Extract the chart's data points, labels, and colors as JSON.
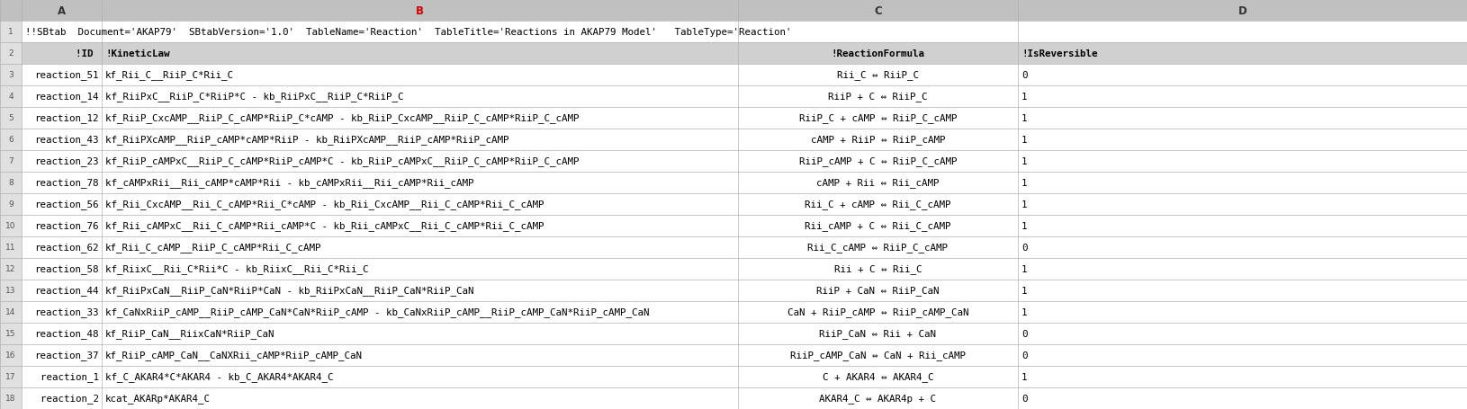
{
  "rows": [
    {
      "row_num": "1",
      "col_a": "!!SBtab  Document='AKAP79'  SBtabVersion='1.0'  TableName='Reaction'  TableTitle='Reactions in AKAP79 Model'   TableType='Reaction'",
      "col_b": "",
      "col_c": "",
      "col_d": "",
      "is_header": false,
      "merged": true
    },
    {
      "row_num": "2",
      "col_a": "!ID ",
      "col_b": "!KineticLaw",
      "col_c": "!ReactionFormula",
      "col_d": "!IsReversible",
      "is_header": true,
      "merged": false
    },
    {
      "row_num": "3",
      "col_a": "reaction_51",
      "col_b": "kf_Rii_C__RiiP_C*Rii_C",
      "col_c": "Rii_C ⇔ RiiP_C",
      "col_d": "0",
      "is_header": false,
      "merged": false
    },
    {
      "row_num": "4",
      "col_a": "reaction_14",
      "col_b": "kf_RiiPxC__RiiP_C*RiiP*C - kb_RiiPxC__RiiP_C*RiiP_C",
      "col_c": "RiiP + C ⇔ RiiP_C",
      "col_d": "1",
      "is_header": false,
      "merged": false
    },
    {
      "row_num": "5",
      "col_a": "reaction_12",
      "col_b": "kf_RiiP_CxcAMP__RiiP_C_cAMP*RiiP_C*cAMP - kb_RiiP_CxcAMP__RiiP_C_cAMP*RiiP_C_cAMP",
      "col_c": "RiiP_C + cAMP ⇔ RiiP_C_cAMP",
      "col_d": "1",
      "is_header": false,
      "merged": false
    },
    {
      "row_num": "6",
      "col_a": "reaction_43",
      "col_b": "kf_RiiPXcAMP__RiiP_cAMP*cAMP*RiiP - kb_RiiPXcAMP__RiiP_cAMP*RiiP_cAMP",
      "col_c": "cAMP + RiiP ⇔ RiiP_cAMP",
      "col_d": "1",
      "is_header": false,
      "merged": false
    },
    {
      "row_num": "7",
      "col_a": "reaction_23",
      "col_b": "kf_RiiP_cAMPxC__RiiP_C_cAMP*RiiP_cAMP*C - kb_RiiP_cAMPxC__RiiP_C_cAMP*RiiP_C_cAMP",
      "col_c": "RiiP_cAMP + C ⇔ RiiP_C_cAMP",
      "col_d": "1",
      "is_header": false,
      "merged": false
    },
    {
      "row_num": "8",
      "col_a": "reaction_78",
      "col_b": "kf_cAMPxRii__Rii_cAMP*cAMP*Rii - kb_cAMPxRii__Rii_cAMP*Rii_cAMP",
      "col_c": "cAMP + Rii ⇔ Rii_cAMP",
      "col_d": "1",
      "is_header": false,
      "merged": false
    },
    {
      "row_num": "9",
      "col_a": "reaction_56",
      "col_b": "kf_Rii_CxcAMP__Rii_C_cAMP*Rii_C*cAMP - kb_Rii_CxcAMP__Rii_C_cAMP*Rii_C_cAMP",
      "col_c": "Rii_C + cAMP ⇔ Rii_C_cAMP",
      "col_d": "1",
      "is_header": false,
      "merged": false
    },
    {
      "row_num": "10",
      "col_a": "reaction_76",
      "col_b": "kf_Rii_cAMPxC__Rii_C_cAMP*Rii_cAMP*C - kb_Rii_cAMPxC__Rii_C_cAMP*Rii_C_cAMP",
      "col_c": "Rii_cAMP + C ⇔ Rii_C_cAMP",
      "col_d": "1",
      "is_header": false,
      "merged": false
    },
    {
      "row_num": "11",
      "col_a": "reaction_62",
      "col_b": "kf_Rii_C_cAMP__RiiP_C_cAMP*Rii_C_cAMP",
      "col_c": "Rii_C_cAMP ⇔ RiiP_C_cAMP",
      "col_d": "0",
      "is_header": false,
      "merged": false
    },
    {
      "row_num": "12",
      "col_a": "reaction_58",
      "col_b": "kf_RiixC__Rii_C*Rii*C - kb_RiixC__Rii_C*Rii_C",
      "col_c": "Rii + C ⇔ Rii_C",
      "col_d": "1",
      "is_header": false,
      "merged": false
    },
    {
      "row_num": "13",
      "col_a": "reaction_44",
      "col_b": "kf_RiiPxCaN__RiiP_CaN*RiiP*CaN - kb_RiiPxCaN__RiiP_CaN*RiiP_CaN",
      "col_c": "RiiP + CaN ⇔ RiiP_CaN",
      "col_d": "1",
      "is_header": false,
      "merged": false
    },
    {
      "row_num": "14",
      "col_a": "reaction_33",
      "col_b": "kf_CaNxRiiP_cAMP__RiiP_cAMP_CaN*CaN*RiiP_cAMP - kb_CaNxRiiP_cAMP__RiiP_cAMP_CaN*RiiP_cAMP_CaN",
      "col_c": "CaN + RiiP_cAMP ⇔ RiiP_cAMP_CaN",
      "col_d": "1",
      "is_header": false,
      "merged": false
    },
    {
      "row_num": "15",
      "col_a": "reaction_48",
      "col_b": "kf_RiiP_CaN__RiixCaN*RiiP_CaN",
      "col_c": "RiiP_CaN ⇔ Rii + CaN",
      "col_d": "0",
      "is_header": false,
      "merged": false
    },
    {
      "row_num": "16",
      "col_a": "reaction_37",
      "col_b": "kf_RiiP_cAMP_CaN__CaNXRii_cAMP*RiiP_cAMP_CaN",
      "col_c": "RiiP_cAMP_CaN ⇔ CaN + Rii_cAMP",
      "col_d": "0",
      "is_header": false,
      "merged": false
    },
    {
      "row_num": "17",
      "col_a": "  reaction_1",
      "col_b": "kf_C_AKAR4*C*AKAR4 - kb_C_AKAR4*AKAR4_C",
      "col_c": "C + AKAR4 ⇔ AKAR4_C",
      "col_d": "1",
      "is_header": false,
      "merged": false
    },
    {
      "row_num": "18",
      "col_a": "  reaction_2",
      "col_b": "kcat_AKARp*AKAR4_C",
      "col_c": "AKAR4_C ⇔ AKAR4p + C",
      "col_d": "0",
      "is_header": false,
      "merged": false
    }
  ],
  "col_header_bg": "#c0c0c0",
  "col_header_text_color": "#333333",
  "col_B_header_color": "#cc0000",
  "row_num_bg": "#e0e0e0",
  "row_num_color": "#555555",
  "header_row_bg": "#d0d0d0",
  "data_row_bg": "#ffffff",
  "grid_color": "#b0b0b0",
  "col_names": [
    "",
    "A",
    "B",
    "C",
    "D"
  ],
  "fontsize": 7.8,
  "col_header_fontsize": 8.5
}
